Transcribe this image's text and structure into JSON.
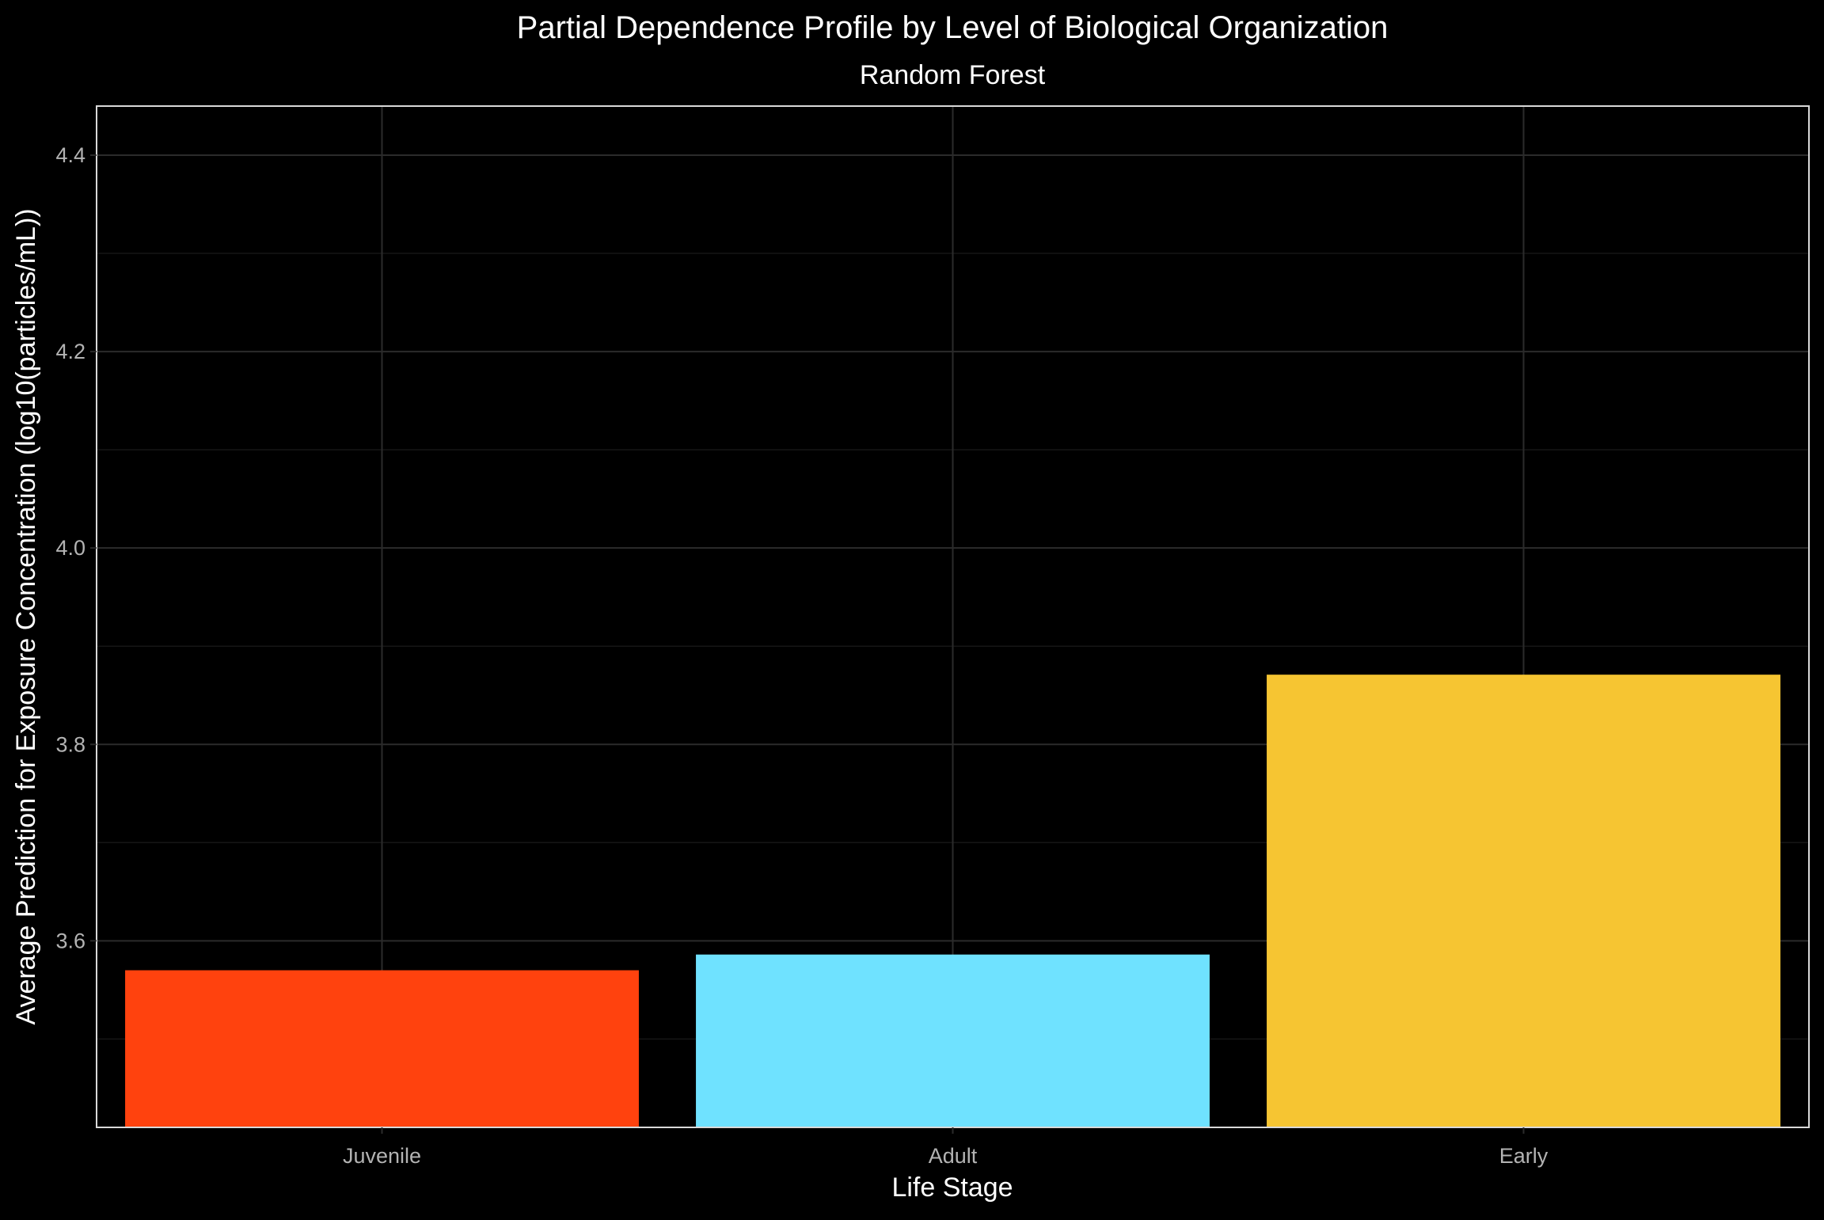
{
  "chart_data": {
    "type": "bar",
    "title": "Partial Dependence Profile by Level of Biological Organization",
    "subtitle": "Random Forest",
    "xlabel": "Life Stage",
    "ylabel": "Average Prediction for Exposure Concentration (log10(particles/mL))",
    "categories": [
      "Juvenile",
      "Adult",
      "Early"
    ],
    "values": [
      3.57,
      3.586,
      3.871
    ],
    "colors": [
      "#FF420E",
      "#6FE2FF",
      "#F6C532"
    ],
    "ylim": [
      3.41,
      4.45
    ],
    "yticks": [
      3.6,
      3.8,
      4.0,
      4.2,
      4.4
    ],
    "ytick_labels": [
      "3.6",
      "3.8",
      "4.0",
      "4.2",
      "4.4"
    ],
    "grid": true,
    "legend": "none"
  },
  "theme": {
    "background": "#000000",
    "panel_border": "#D9D9D9",
    "grid_major": "#2B2B2B",
    "grid_minor": "#161616",
    "title_color": "#FFFFFF",
    "tick_label_color": "#B3B3B3"
  }
}
